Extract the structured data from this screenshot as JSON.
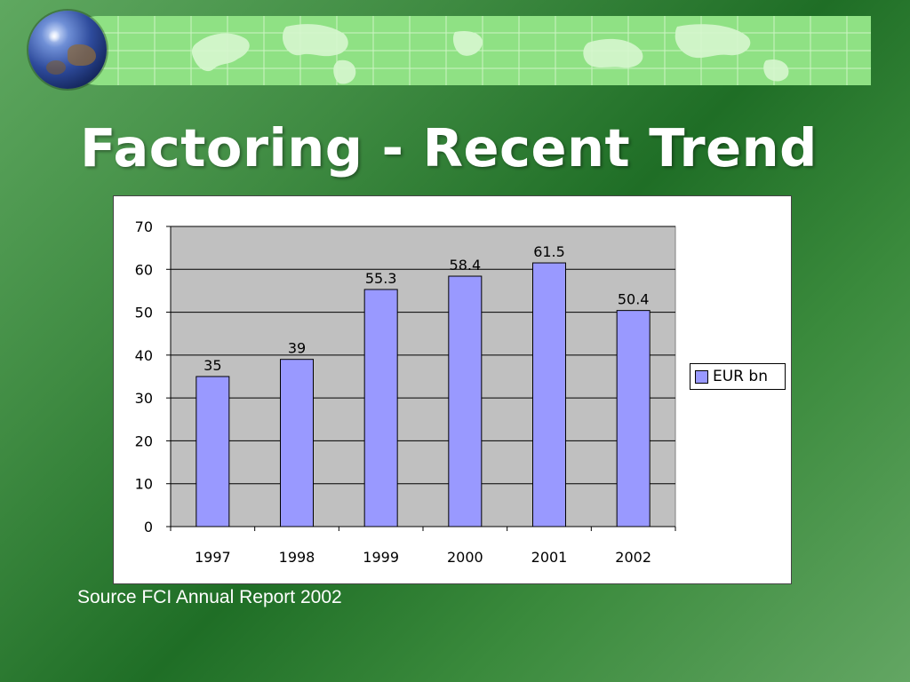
{
  "slide": {
    "title": "Factoring - Recent Trend",
    "source": "Source FCI Annual Report 2002"
  },
  "colors": {
    "banner": "#8fe184",
    "bar_fill": "#9999ff",
    "plot_background": "#c0c0c0",
    "title_text": "#ffffff"
  },
  "icons": [
    "globe-icon",
    "world-map-icon"
  ],
  "chart_data": {
    "type": "bar",
    "categories": [
      "1997",
      "1998",
      "1999",
      "2000",
      "2001",
      "2002"
    ],
    "series": [
      {
        "name": "EUR bn",
        "values": [
          35,
          39,
          55.3,
          58.4,
          61.5,
          50.4
        ]
      }
    ],
    "data_labels": [
      "35",
      "39",
      "55.3",
      "58.4",
      "61.5",
      "50.4"
    ],
    "yticks": [
      "0",
      "10",
      "20",
      "30",
      "40",
      "50",
      "60",
      "70"
    ],
    "ylim": [
      0,
      70
    ],
    "grid": true,
    "legend": {
      "position": "right",
      "entries": [
        "EUR bn"
      ]
    }
  }
}
